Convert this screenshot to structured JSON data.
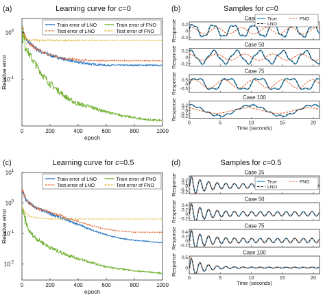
{
  "figure": {
    "panels": [
      {
        "letter": "(a)",
        "title": "Learning curve for ",
        "title_c": "c",
        "title_eq": "=0"
      },
      {
        "letter": "(b)",
        "title": "Samples for ",
        "title_c": "c",
        "title_eq": "=0"
      },
      {
        "letter": "(c)",
        "title": "Learning curve for ",
        "title_c": "c",
        "title_eq": "=0.5"
      },
      {
        "letter": "(d)",
        "title": "Samples for ",
        "title_c": "c",
        "title_eq": "=0.5"
      }
    ]
  },
  "colors": {
    "train_lno": "#1f6fbf",
    "test_lno": "#e0602a",
    "train_fno": "#6cae2a",
    "test_fno": "#e0b020",
    "true": "#3fa3d8",
    "lno": "#1a1a1a",
    "fno": "#e0602a"
  },
  "chart_data": [
    {
      "type": "line",
      "panel": "a",
      "xlabel": "epoch",
      "ylabel": "Relative error",
      "xlim": [
        0,
        1000
      ],
      "ylim": [
        0.01,
        2
      ],
      "yscale": "log",
      "xticks": [
        "0",
        "200",
        "400",
        "600",
        "800",
        "1000"
      ],
      "yticks": [
        {
          "value": 1,
          "label": "10",
          "exp": "0"
        },
        {
          "value": 0.1,
          "label": "10",
          "exp": "-1"
        }
      ],
      "legend": {
        "placement": "top-right"
      },
      "series": [
        {
          "name": "Train error of LNO",
          "color_key": "train_lno",
          "noise": 0.12,
          "x": [
            0,
            20,
            50,
            100,
            150,
            200,
            250,
            300,
            350,
            400,
            500,
            600,
            700,
            800,
            900,
            1000
          ],
          "values": [
            1.2,
            0.8,
            0.6,
            0.45,
            0.37,
            0.33,
            0.3,
            0.27,
            0.25,
            0.23,
            0.21,
            0.2,
            0.2,
            0.2,
            0.2,
            0.2
          ]
        },
        {
          "name": "Test error of LNO",
          "color_key": "test_lno",
          "noise": 0.1,
          "x": [
            0,
            20,
            50,
            100,
            150,
            200,
            250,
            300,
            350,
            400,
            500,
            600,
            700,
            800,
            900,
            1000
          ],
          "values": [
            1.3,
            0.85,
            0.6,
            0.45,
            0.37,
            0.33,
            0.3,
            0.28,
            0.27,
            0.26,
            0.25,
            0.25,
            0.25,
            0.25,
            0.25,
            0.25
          ]
        },
        {
          "name": "Train error of FNO",
          "color_key": "train_fno",
          "noise": 0.22,
          "x": [
            0,
            20,
            50,
            100,
            150,
            200,
            250,
            300,
            350,
            400,
            450,
            500,
            600,
            700,
            800,
            900,
            1000
          ],
          "values": [
            1.0,
            0.6,
            0.35,
            0.2,
            0.12,
            0.08,
            0.06,
            0.045,
            0.035,
            0.03,
            0.027,
            0.025,
            0.02,
            0.017,
            0.015,
            0.0135,
            0.013
          ]
        },
        {
          "name": "Test error of FNO",
          "color_key": "test_fno",
          "noise": 0.05,
          "x": [
            0,
            20,
            50,
            100,
            200,
            400,
            600,
            800,
            1000
          ],
          "values": [
            1.0,
            0.8,
            0.7,
            0.68,
            0.68,
            0.68,
            0.68,
            0.68,
            0.68
          ]
        }
      ]
    },
    {
      "type": "line",
      "panel": "b",
      "xlabel": "Time (seconds)",
      "ylabel": "Response",
      "xlim": [
        0,
        21
      ],
      "xticks": [
        "0",
        "5",
        "10",
        "15",
        "20"
      ],
      "legend": {
        "placement": "top-right",
        "entries": [
          "True",
          "FNO",
          "LNO"
        ]
      },
      "subplots": [
        {
          "title": "Case 25",
          "ylim": [
            -0.28,
            0.28
          ],
          "yticks": [
            "0.2",
            "0",
            "-0.2"
          ],
          "yvals": [
            0.2,
            0,
            -0.2
          ],
          "true": {
            "amp": 0.19,
            "freq": 0.31,
            "phase": 0.3,
            "amp2": 0.04,
            "freq2": 0.95
          },
          "fno": {
            "amp": 0.1,
            "freq": 0.25,
            "phase": 0.9
          }
        },
        {
          "title": "Case 50",
          "ylim": [
            -0.28,
            0.28
          ],
          "yticks": [
            "0.2",
            "0",
            "-0.2"
          ],
          "yvals": [
            0.2,
            0,
            -0.2
          ],
          "true": {
            "amp": 0.19,
            "freq": 0.27,
            "phase": 1.2,
            "amp2": 0.04,
            "freq2": 0.8
          },
          "fno": {
            "amp": 0.1,
            "freq": 0.22,
            "phase": 1.8
          }
        },
        {
          "title": "Case 75",
          "ylim": [
            -1.0,
            1.1
          ],
          "yticks": [
            "0.5",
            "0",
            "-0.5"
          ],
          "yvals": [
            0.5,
            0,
            -0.5
          ],
          "true": {
            "amp": 0.7,
            "freq": 0.2,
            "phase": 0.0,
            "amp2": 0.2,
            "freq2": 0.6
          },
          "fno": {
            "amp": 0.5,
            "freq": 0.21,
            "phase": 0.5
          }
        },
        {
          "title": "Case 100",
          "ylim": [
            -0.3,
            0.35
          ],
          "yticks": [
            "0.2",
            "0.1",
            "0",
            "-0.1",
            "-0.2"
          ],
          "yvals": [
            0.2,
            0.1,
            0,
            -0.1,
            -0.2
          ],
          "true": {
            "amp": 0.2,
            "freq": 0.1,
            "phase": 1.6,
            "amp2": 0.03,
            "freq2": 0.7
          },
          "fno": {
            "amp": 0.1,
            "freq": 0.1,
            "phase": 2.0
          }
        }
      ]
    },
    {
      "type": "line",
      "panel": "c",
      "xlabel": "epoch",
      "ylabel": "Relative error",
      "xlim": [
        0,
        1000
      ],
      "ylim": [
        0.003,
        10
      ],
      "yscale": "log",
      "xticks": [
        "0",
        "200",
        "400",
        "600",
        "800",
        "1000"
      ],
      "yticks": [
        {
          "value": 10,
          "label": "10",
          "exp": "1"
        },
        {
          "value": 1,
          "label": "10",
          "exp": "0"
        },
        {
          "value": 0.1,
          "label": "10",
          "exp": "-1"
        },
        {
          "value": 0.01,
          "label": "10",
          "exp": "-2"
        }
      ],
      "legend": {
        "placement": "top-right"
      },
      "series": [
        {
          "name": "Train error of LNO",
          "color_key": "train_lno",
          "noise": 0.15,
          "x": [
            0,
            20,
            50,
            100,
            150,
            200,
            300,
            400,
            500,
            600,
            700,
            800,
            900,
            1000
          ],
          "values": [
            2.5,
            1.5,
            1.0,
            0.7,
            0.55,
            0.45,
            0.3,
            0.2,
            0.13,
            0.09,
            0.07,
            0.06,
            0.055,
            0.05
          ]
        },
        {
          "name": "Test error of LNO",
          "color_key": "test_lno",
          "noise": 0.12,
          "x": [
            0,
            20,
            50,
            100,
            200,
            300,
            400,
            500,
            600,
            700,
            800,
            900,
            1000
          ],
          "values": [
            3.0,
            1.6,
            1.0,
            0.7,
            0.5,
            0.35,
            0.25,
            0.18,
            0.14,
            0.12,
            0.11,
            0.11,
            0.11
          ]
        },
        {
          "name": "Train error of FNO",
          "color_key": "train_fno",
          "noise": 0.2,
          "x": [
            0,
            20,
            50,
            100,
            200,
            300,
            400,
            500,
            600,
            700,
            800,
            900,
            1000
          ],
          "values": [
            0.6,
            0.3,
            0.12,
            0.07,
            0.035,
            0.022,
            0.015,
            0.011,
            0.008,
            0.007,
            0.006,
            0.0055,
            0.005
          ]
        },
        {
          "name": "Test error of FNO",
          "color_key": "test_fno",
          "noise": 0.04,
          "x": [
            0,
            20,
            50,
            100,
            200,
            400,
            600,
            800,
            1000
          ],
          "values": [
            0.8,
            0.5,
            0.38,
            0.33,
            0.3,
            0.3,
            0.3,
            0.3,
            0.3
          ]
        }
      ]
    },
    {
      "type": "line",
      "panel": "d",
      "xlabel": "Time (seconds)",
      "ylabel": "Response",
      "xlim": [
        0,
        21
      ],
      "xticks": [
        "0",
        "5",
        "10",
        "15",
        "20"
      ],
      "legend": {
        "placement": "top-right",
        "entries": [
          "True",
          "FNO",
          "LNO"
        ]
      },
      "subplots": [
        {
          "title": "Case 25",
          "ylim": [
            -0.25,
            0.32
          ],
          "yticks": [
            "0.2",
            "0.1",
            "0",
            "-0.1",
            "-0.2"
          ],
          "yvals": [
            0.2,
            0.1,
            0,
            -0.1,
            -0.2
          ],
          "decay": {
            "amp": 0.28,
            "tau": 2.2,
            "freq": 0.72,
            "amp2": 0.07,
            "freq2": 0.82
          }
        },
        {
          "title": "Case 50",
          "ylim": [
            -0.3,
            0.5
          ],
          "yticks": [
            "0.4",
            "0.2",
            "0",
            "-0.2"
          ],
          "yvals": [
            0.4,
            0.2,
            0,
            -0.2
          ],
          "decay": {
            "amp": 0.42,
            "tau": 2.2,
            "freq": 0.72,
            "amp2": 0.1,
            "freq2": 0.82
          }
        },
        {
          "title": "Case 75",
          "ylim": [
            -0.3,
            0.5
          ],
          "yticks": [
            "0.4",
            "0.2",
            "0",
            "-0.2"
          ],
          "yvals": [
            0.4,
            0.2,
            0,
            -0.2
          ],
          "decay": {
            "amp": 0.42,
            "tau": 2.2,
            "freq": 0.72,
            "amp2": 0.1,
            "freq2": 0.82
          }
        },
        {
          "title": "Case 100",
          "ylim": [
            -0.3,
            0.55
          ],
          "yticks": [
            "0.5",
            "0"
          ],
          "yvals": [
            0.5,
            0
          ],
          "decay": {
            "amp": 0.48,
            "tau": 2.2,
            "freq": 0.72,
            "amp2": 0.02,
            "freq2": 0.82
          }
        }
      ]
    }
  ]
}
